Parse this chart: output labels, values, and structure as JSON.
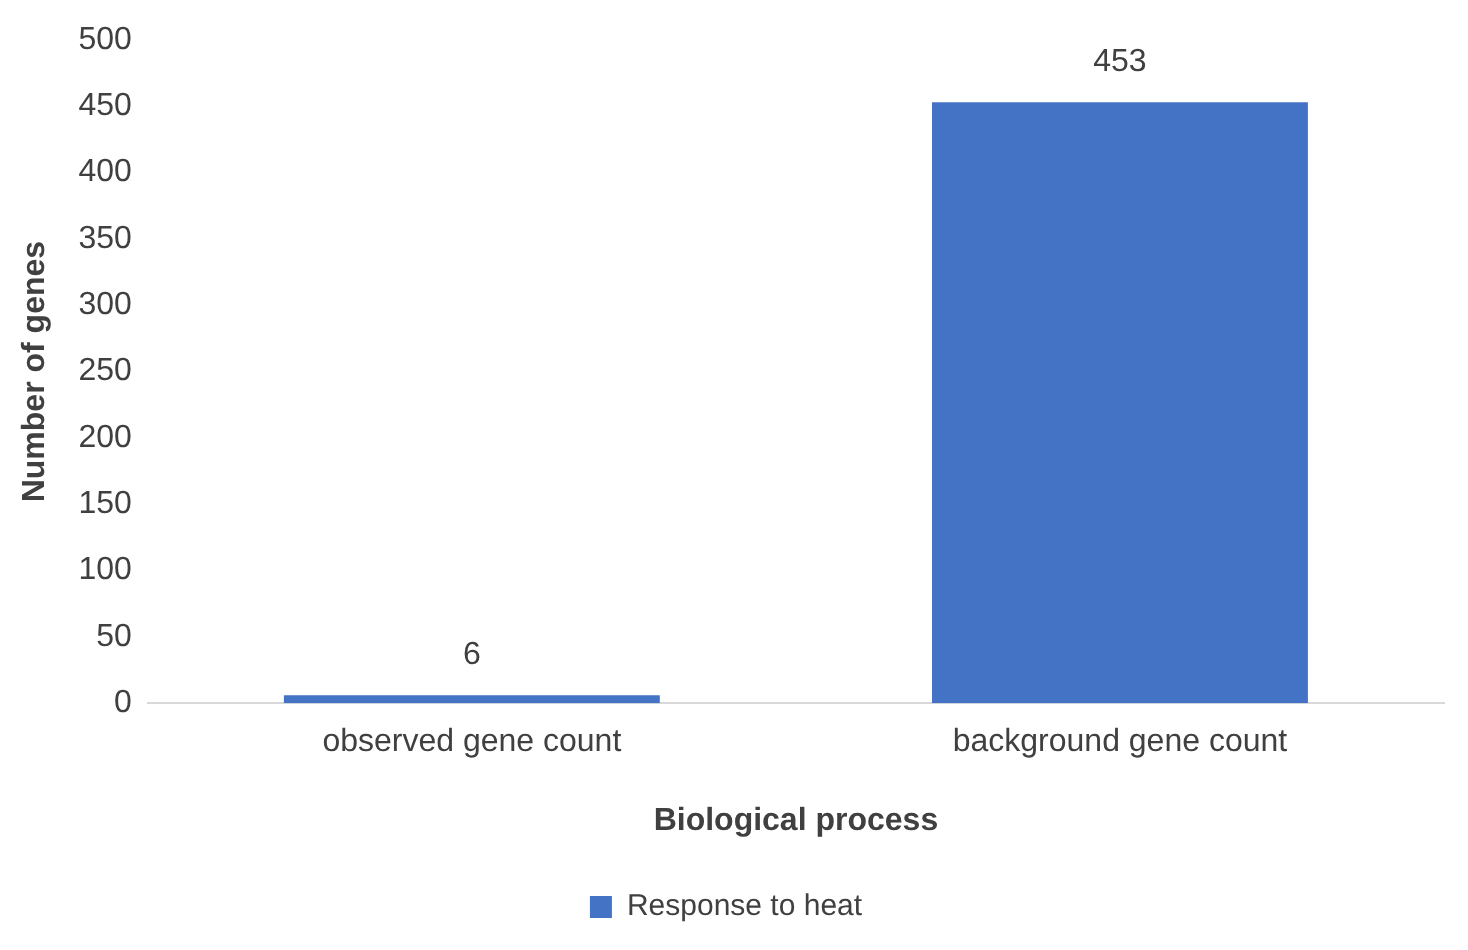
{
  "chart_data": {
    "type": "bar",
    "xlabel": "Biological process",
    "ylabel": "Number of genes",
    "categories": [
      "observed gene count",
      "background gene count"
    ],
    "series": [
      {
        "name": "Response to heat",
        "color": "#4472c4",
        "values": [
          6,
          453
        ]
      }
    ],
    "ylim": [
      0,
      500
    ],
    "yticks": [
      0,
      50,
      100,
      150,
      200,
      250,
      300,
      350,
      400,
      450,
      500
    ],
    "grid": false,
    "legend": "bottom",
    "data_labels": true
  }
}
